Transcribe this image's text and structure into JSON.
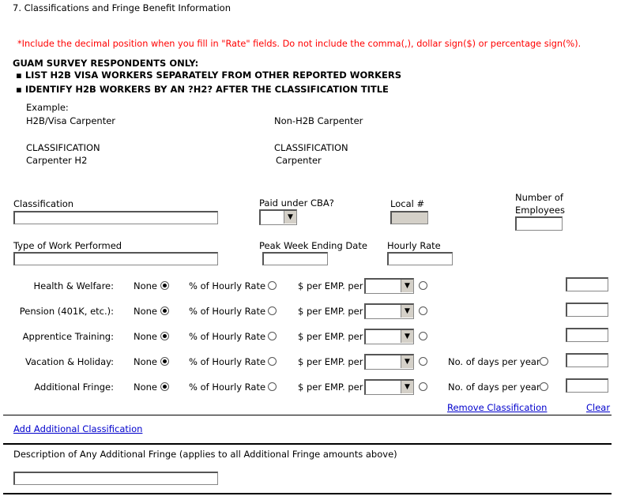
{
  "section_title": "7. Classifications and Fringe Benefit Information",
  "notice": "*Include the decimal position when you fill in \"Rate\" fields. Do not include the comma(,), dollar sign($) or percentage sign(%).",
  "guam": {
    "heading": "GUAM SURVEY RESPONDENTS ONLY:",
    "bullets": [
      "LIST H2B VISA WORKERS SEPARATELY FROM OTHER REPORTED WORKERS",
      "IDENTIFY H2B WORKERS BY AN ?H2? AFTER THE CLASSIFICATION TITLE"
    ]
  },
  "example": {
    "label": "Example:",
    "left_type": "H2B/Visa Carpenter",
    "right_type": "Non-H2B Carpenter",
    "left_class_label": "CLASSIFICATION",
    "left_class_value": "Carpenter H2",
    "right_class_label": "CLASSIFICATION",
    "right_class_value": "Carpenter"
  },
  "fields": {
    "classification": "Classification",
    "paid_cba": "Paid under CBA?",
    "local": "Local #",
    "num_employees_1": "Number of",
    "num_employees_2": "Employees",
    "type_of_work": "Type of Work Performed",
    "peak_week": "Peak Week Ending Date",
    "hourly_rate": "Hourly Rate"
  },
  "fringe_options": {
    "none": "None",
    "pct": "% of Hourly Rate",
    "per_emp": "$ per EMP. per",
    "days": "No. of days per year"
  },
  "fringe_rows": [
    {
      "label": "Health & Welfare:",
      "days": false
    },
    {
      "label": "Pension (401K, etc.):",
      "days": false
    },
    {
      "label": "Apprentice Training:",
      "days": false
    },
    {
      "label": "Vacation & Holiday:",
      "days": true
    },
    {
      "label": "Additional Fringe:",
      "days": true
    }
  ],
  "links": {
    "remove": "Remove Classification",
    "clear": "Clear",
    "add": "Add Additional Classification"
  },
  "description_label": "Description of Any Additional Fringe (applies to all Additional Fringe amounts above)",
  "colors": {
    "notice": "#ff0000",
    "link": "#0000cc"
  }
}
